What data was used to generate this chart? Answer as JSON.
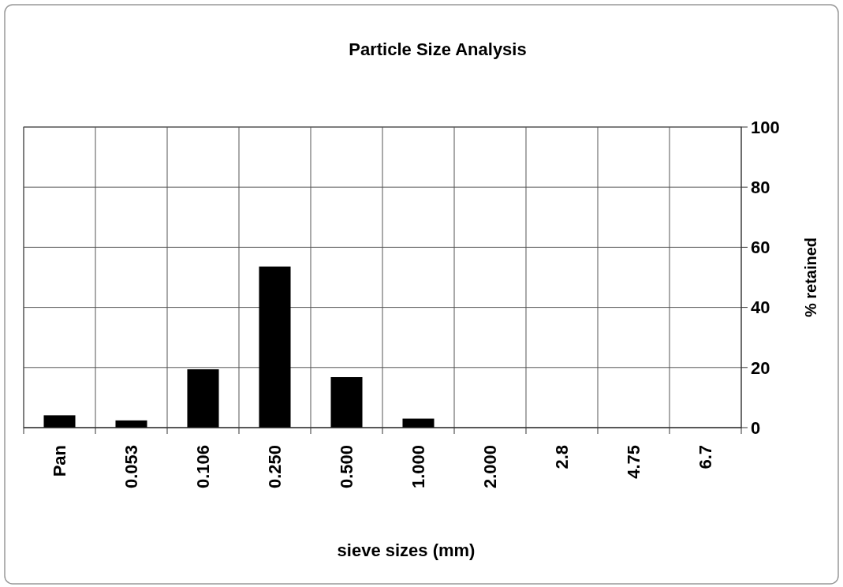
{
  "chart_data": {
    "type": "bar",
    "title": "Particle Size Analysis",
    "xlabel": "sieve sizes (mm)",
    "ylabel": "% retained",
    "categories": [
      "Pan",
      "0.053",
      "0.106",
      "0.250",
      "0.500",
      "1.000",
      "2.000",
      "2.8",
      "4.75",
      "6.7"
    ],
    "values": [
      4.1,
      2.4,
      19.4,
      53.6,
      16.8,
      3.0,
      0,
      0,
      0,
      0
    ],
    "color": "#000000",
    "ylim": [
      0,
      100
    ],
    "yticks": [
      0,
      20,
      40,
      60,
      80,
      100
    ],
    "grid": true
  }
}
